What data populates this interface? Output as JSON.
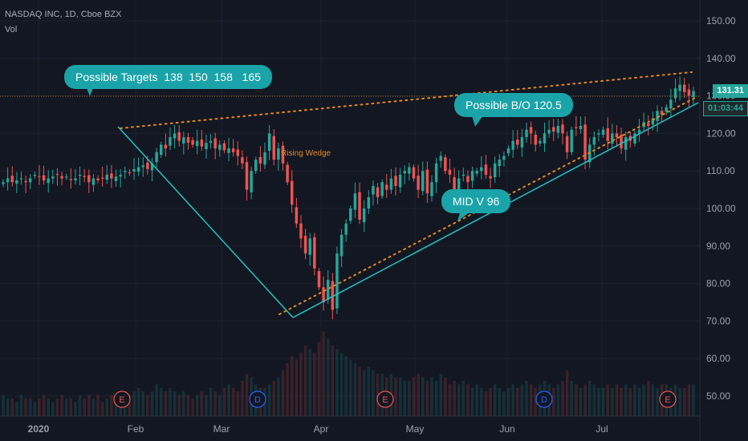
{
  "header": {
    "symbol_line": "NASDAQ INC, 1D, Cboe BZX",
    "volume_label": "Vol"
  },
  "price_tags": {
    "last_price": "131.31",
    "countdown": "01:03:44",
    "color": "#26a69a"
  },
  "annotations": {
    "targets": "Possible Targets  138  150  158   165",
    "breakout": "Possible B/O 120.5",
    "mid_v": "MID V 96",
    "wedge": "Rising Wedge"
  },
  "colors": {
    "background": "#131722",
    "up": "#26a69a",
    "down": "#ef5350",
    "trendline": "#22c3c9",
    "wedge_dotted": "#e08a1e",
    "bubble": "#1aa3a8"
  },
  "chart_data": {
    "type": "candlestick",
    "x_ticks": [
      "2020",
      "Feb",
      "Mar",
      "Apr",
      "May",
      "Jun",
      "Jul"
    ],
    "y_ticks": [
      50,
      60,
      70,
      80,
      90,
      100,
      110,
      120,
      130,
      140,
      150
    ],
    "ylim": [
      45,
      155
    ],
    "grid": true,
    "events": [
      {
        "label": "E",
        "date": "Jan 31"
      },
      {
        "label": "D",
        "date": "Mar 13"
      },
      {
        "label": "E",
        "date": "Apr 22"
      },
      {
        "label": "D",
        "date": "Jun 12"
      },
      {
        "label": "E",
        "date": "Jul 22"
      }
    ],
    "closes": [
      107,
      108,
      107,
      107.5,
      108,
      107,
      108,
      109,
      108.5,
      107.5,
      108,
      108.5,
      109,
      108,
      108.5,
      107.5,
      108,
      109,
      108.5,
      107,
      108,
      107.5,
      108,
      109,
      108,
      108.5,
      109,
      110,
      109.5,
      110.5,
      111,
      111.5,
      110.5,
      112,
      115,
      117,
      116,
      119,
      120,
      118,
      119,
      117.5,
      117,
      118,
      116.5,
      117.5,
      118,
      116,
      117,
      115.5,
      116,
      115,
      114,
      112,
      105,
      110,
      113,
      112,
      115,
      120,
      113,
      116,
      112,
      107,
      101,
      96,
      92,
      88,
      92,
      84,
      79,
      75,
      81,
      73,
      88,
      93,
      96,
      100,
      104,
      97,
      100,
      103,
      106,
      103,
      107,
      105,
      108,
      106,
      109,
      110,
      111,
      108,
      105,
      110,
      104,
      107,
      112,
      114,
      110,
      109,
      105,
      108,
      109,
      107,
      110,
      110,
      111,
      109,
      108,
      112,
      113,
      114,
      116,
      118,
      117,
      119,
      121,
      120,
      117,
      118,
      120,
      121,
      120.5,
      122,
      120,
      115,
      121,
      121.5,
      122,
      113,
      117,
      119,
      120,
      121,
      118,
      120,
      119,
      116,
      119,
      118,
      120,
      121,
      123,
      122,
      124,
      126,
      125,
      127,
      129,
      132,
      133,
      131,
      130,
      131.3
    ],
    "volumes": [
      6,
      5,
      5,
      4,
      6,
      5,
      5,
      4,
      5,
      6,
      5,
      4,
      5,
      6,
      5,
      5,
      4,
      6,
      5,
      6,
      5,
      6,
      4,
      5,
      6,
      5,
      5,
      6,
      6,
      7,
      8,
      7,
      6,
      7,
      9,
      8,
      7,
      8,
      7,
      6,
      7,
      6,
      5,
      6,
      7,
      6,
      8,
      7,
      6,
      8,
      9,
      8,
      7,
      10,
      12,
      11,
      9,
      8,
      8,
      9,
      10,
      11,
      13,
      15,
      17,
      16,
      18,
      20,
      19,
      18,
      21,
      24,
      22,
      20,
      19,
      18,
      17,
      16,
      15,
      14,
      13,
      14,
      13,
      12,
      12,
      11,
      12,
      11,
      11,
      10,
      10,
      11,
      12,
      11,
      10,
      11,
      10,
      12,
      11,
      9,
      10,
      9,
      10,
      9,
      8,
      9,
      8,
      7,
      8,
      9,
      8,
      7,
      8,
      9,
      8,
      9,
      10,
      9,
      8,
      9,
      10,
      9,
      8,
      9,
      10,
      13,
      10,
      9,
      8,
      9,
      10,
      9,
      8,
      8,
      9,
      8,
      9,
      8,
      9,
      8,
      9,
      8,
      9,
      10,
      9,
      8,
      9,
      9,
      8,
      9,
      8,
      8,
      9,
      9
    ]
  }
}
